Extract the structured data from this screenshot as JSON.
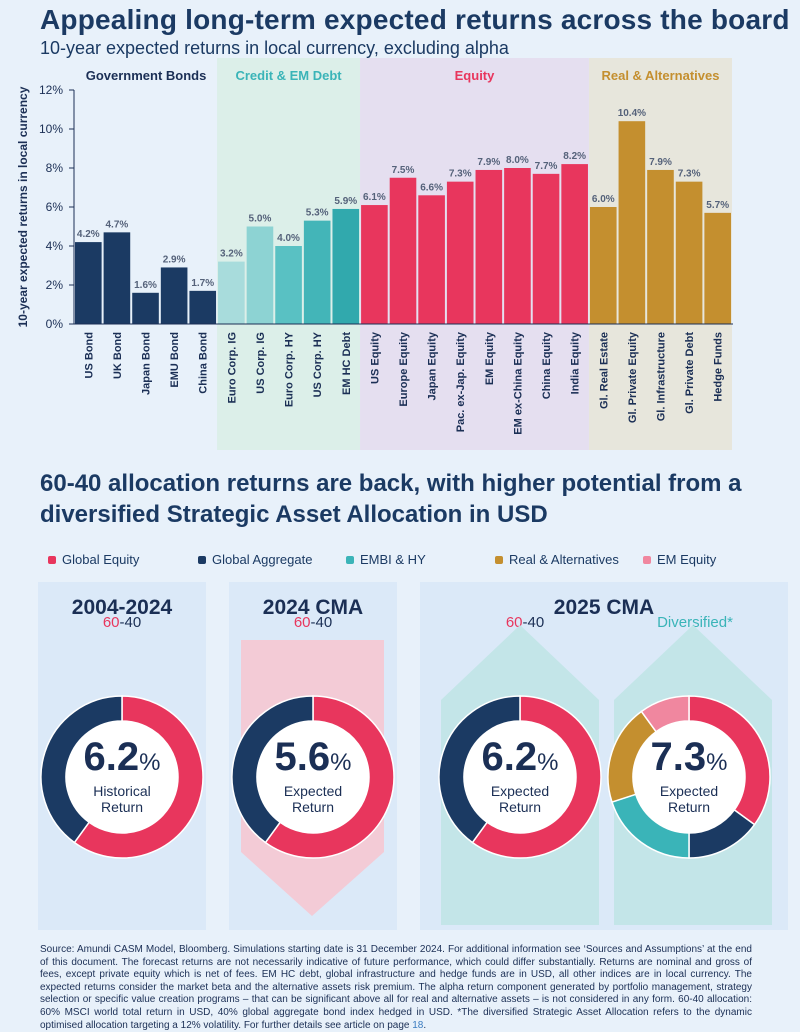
{
  "header": {
    "title": "Appealing long-term expected returns across the board",
    "subtitle": "10-year expected returns in local currency, excluding alpha"
  },
  "chart_data": {
    "type": "bar",
    "ylabel": "10-year expected returns in local currency",
    "ylim": [
      0,
      12
    ],
    "yticks": [
      "0%",
      "2%",
      "4%",
      "6%",
      "8%",
      "10%",
      "12%"
    ],
    "groups": [
      {
        "name": "Government Bonds",
        "color": "#1b3a63",
        "label_color": "#1b2f55",
        "bg": "#e8f1fa",
        "categories": [
          "US Bond",
          "UK Bond",
          "Japan Bond",
          "EMU Bond",
          "China Bond"
        ],
        "values": [
          4.2,
          4.7,
          1.6,
          2.9,
          1.7
        ],
        "labels": [
          "4.2%",
          "4.7%",
          "1.6%",
          "2.9%",
          "1.7%"
        ],
        "colors": [
          "#1b3a63",
          "#1b3a63",
          "#1b3a63",
          "#1b3a63",
          "#1b3a63"
        ]
      },
      {
        "name": "Credit & EM Debt",
        "color": "#3ab4b8",
        "label_color": "#3ab4b8",
        "bg": "#dcefe9",
        "categories": [
          "Euro Corp. IG",
          "US Corp. IG",
          "Euro Corp. HY",
          "US Corp. HY",
          "EM HC Debt"
        ],
        "values": [
          3.2,
          5.0,
          4.0,
          5.3,
          5.9
        ],
        "labels": [
          "3.2%",
          "5.0%",
          "4.0%",
          "5.3%",
          "5.9%"
        ],
        "colors": [
          "#a8dcdc",
          "#8dd3d3",
          "#59c1c3",
          "#43b5b8",
          "#31a9ad"
        ]
      },
      {
        "name": "Equity",
        "color": "#e8365d",
        "label_color": "#e8365d",
        "bg": "#e5dff0",
        "categories": [
          "US Equity",
          "Europe Equity",
          "Japan Equity",
          "Pac. ex-Jap. Equity",
          "EM Equity",
          "EM ex-China Equity",
          "China Equity",
          "India Equity"
        ],
        "values": [
          6.1,
          7.5,
          6.6,
          7.3,
          7.9,
          8.0,
          7.7,
          8.2
        ],
        "labels": [
          "6.1%",
          "7.5%",
          "6.6%",
          "7.3%",
          "7.9%",
          "8.0%",
          "7.7%",
          "8.2%"
        ],
        "colors": [
          "#e8365d",
          "#e8365d",
          "#e8365d",
          "#e8365d",
          "#e8365d",
          "#e8365d",
          "#e8365d",
          "#e8365d"
        ]
      },
      {
        "name": "Real & Alternatives",
        "color": "#c48f2f",
        "label_color": "#c48f2f",
        "bg": "#e7e6dc",
        "categories": [
          "Gl. Real Estate",
          "Gl. Private Equity",
          "Gl. Infrastructure",
          "Gl. Private Debt",
          "Hedge Funds"
        ],
        "values": [
          6.0,
          10.4,
          7.9,
          7.3,
          5.7
        ],
        "labels": [
          "6.0%",
          "10.4%",
          "7.9%",
          "7.3%",
          "5.7%"
        ],
        "colors": [
          "#c48f2f",
          "#c48f2f",
          "#c48f2f",
          "#c48f2f",
          "#c48f2f"
        ]
      }
    ]
  },
  "section2": {
    "title": "60-40 allocation returns are back, with higher  potential from a diversified Strategic Asset Allocation in USD",
    "legend": [
      {
        "label": "Global Equity",
        "color": "#e8365d"
      },
      {
        "label": "Global Aggregate",
        "color": "#1b3a63"
      },
      {
        "label": "EMBI & HY",
        "color": "#3ab4b8"
      },
      {
        "label": "Real & Alternatives",
        "color": "#c48f2f"
      },
      {
        "label": "EM Equity",
        "color": "#f0879f"
      }
    ],
    "panels": [
      {
        "title": "2004-2024",
        "sub_a": "60",
        "sub_sep": "-",
        "sub_b": "40"
      },
      {
        "title": "2024 CMA",
        "sub_a": "60",
        "sub_sep": "-",
        "sub_b": "40"
      },
      {
        "title": "2025 CMA",
        "sub_a": "60",
        "sub_sep": "-",
        "sub_b": "40",
        "sub2": "Diversified*"
      }
    ],
    "donuts": [
      {
        "value": "6.2",
        "pct": "%",
        "line1": "Historical",
        "line2": "Return",
        "slices": [
          {
            "share": 60,
            "color": "#e8365d"
          },
          {
            "share": 40,
            "color": "#1b3a63"
          }
        ]
      },
      {
        "value": "5.6",
        "pct": "%",
        "line1": "Expected",
        "line2": "Return",
        "slices": [
          {
            "share": 60,
            "color": "#e8365d"
          },
          {
            "share": 40,
            "color": "#1b3a63"
          }
        ]
      },
      {
        "value": "6.2",
        "pct": "%",
        "line1": "Expected",
        "line2": "Return",
        "slices": [
          {
            "share": 60,
            "color": "#e8365d"
          },
          {
            "share": 40,
            "color": "#1b3a63"
          }
        ]
      },
      {
        "value": "7.3",
        "pct": "%",
        "line1": "Expected",
        "line2": "Return",
        "slices": [
          {
            "share": 35,
            "color": "#e8365d"
          },
          {
            "share": 15,
            "color": "#1b3a63"
          },
          {
            "share": 20,
            "color": "#3ab4b8"
          },
          {
            "share": 20,
            "color": "#c48f2f"
          },
          {
            "share": 10,
            "color": "#f0879f"
          }
        ]
      }
    ]
  },
  "footer": {
    "text": "Source: Amundi CASM Model, Bloomberg. Simulations starting date is 31 December 2024. For additional information see ‘Sources and Assumptions’ at the end of this document. The forecast returns are not necessarily indicative of future performance, which could differ substantially. Returns are nominal and gross of fees, except private equity which is net of fees. EM HC debt, global infrastructure and hedge funds are in USD, all other indices are in local currency. The expected returns consider the market beta and the alternative assets risk premium. The alpha return component generated by portfolio management, strategy selection or specific value creation programs – that can be significant above all for real and alternative assets – is not considered in any form. 60-40 allocation: 60% MSCI world total return in USD, 40% global aggregate bond index hedged in USD. *The diversified Strategic Asset Allocation refers to the dynamic optimised allocation targeting a 12% volatility. For further details see article on page",
    "page_ref": "18",
    "end": "."
  }
}
